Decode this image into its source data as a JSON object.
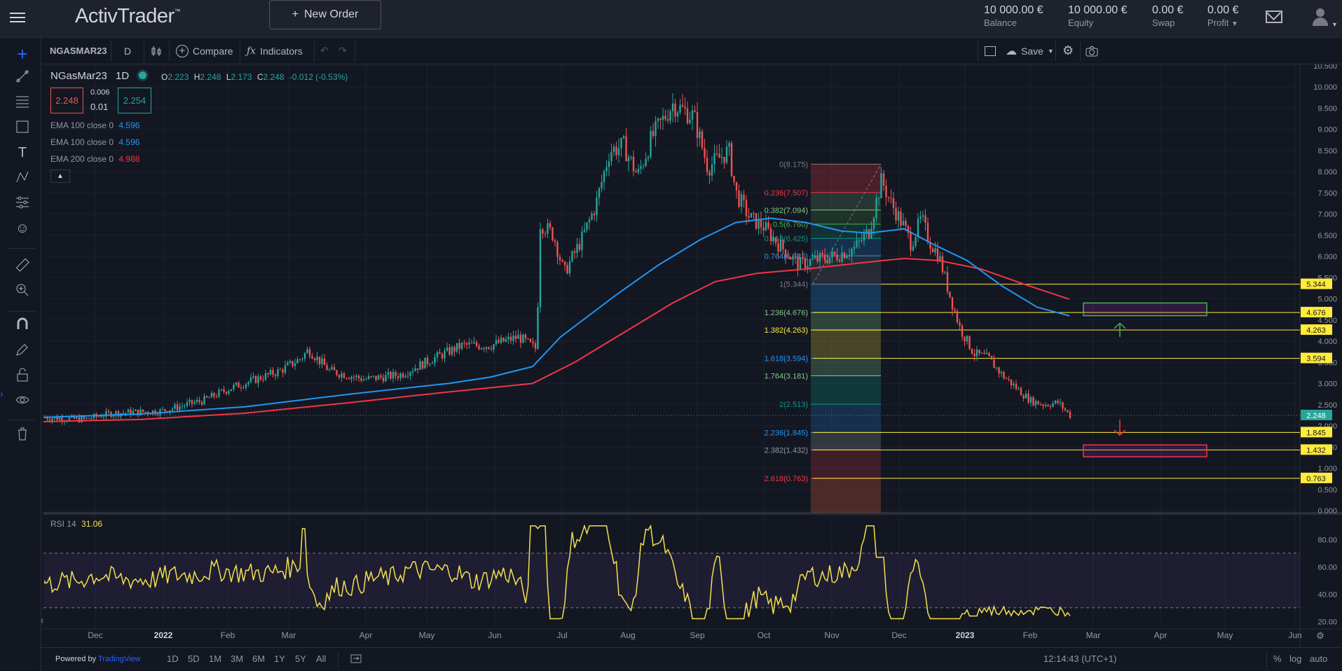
{
  "app": {
    "logo": "ActivTrader",
    "logo_tm": "™",
    "new_order_label": "New Order"
  },
  "account": [
    {
      "value": "10 000.00 €",
      "label": "Balance"
    },
    {
      "value": "10 000.00 €",
      "label": "Equity"
    },
    {
      "value": "0.00 €",
      "label": "Swap"
    },
    {
      "value": "0.00 €",
      "label": "Profit"
    }
  ],
  "toolbar": {
    "symbol": "NGASMAR23",
    "interval": "D",
    "compare": "Compare",
    "indicators": "Indicators",
    "save": "Save"
  },
  "legend": {
    "title": "NGasMar23",
    "tf": "1D",
    "o_label": "O",
    "o": "2.223",
    "h_label": "H",
    "h": "2.248",
    "l_label": "L",
    "l": "2.173",
    "c_label": "C",
    "c": "2.248",
    "chg": "-0.012 (-0.53%)",
    "bid": "2.248",
    "ask": "2.254",
    "spread_top": "0.006",
    "spread": "0.01",
    "emas": [
      {
        "label": "EMA 100 close 0",
        "value": "4.596",
        "color": "#2196f3"
      },
      {
        "label": "EMA 100 close 0",
        "value": "4.596",
        "color": "#2196f3"
      },
      {
        "label": "EMA 200 close 0",
        "value": "4.988",
        "color": "#f23645"
      }
    ]
  },
  "price_axis": [
    "10.500",
    "10.000",
    "9.500",
    "9.000",
    "8.500",
    "8.000",
    "7.500",
    "7.000",
    "6.500",
    "6.000",
    "5.500",
    "5.000",
    "4.500",
    "4.000",
    "3.500",
    "3.000",
    "2.500",
    "2.000",
    "1.500",
    "1.000",
    "0.500",
    "0.000"
  ],
  "price_tags": [
    {
      "value": "5.344",
      "price": 5.344,
      "bg": "#ffeb3b",
      "fg": "#131722"
    },
    {
      "value": "4.676",
      "price": 4.676,
      "bg": "#ffeb3b",
      "fg": "#131722"
    },
    {
      "value": "4.263",
      "price": 4.263,
      "bg": "#ffeb3b",
      "fg": "#131722"
    },
    {
      "value": "3.594",
      "price": 3.594,
      "bg": "#ffeb3b",
      "fg": "#131722"
    },
    {
      "value": "2.248",
      "price": 2.248,
      "bg": "#26a69a",
      "fg": "#ffffff"
    },
    {
      "value": "1.845",
      "price": 1.845,
      "bg": "#ffeb3b",
      "fg": "#131722"
    },
    {
      "value": "1.432",
      "price": 1.432,
      "bg": "#ffeb3b",
      "fg": "#131722"
    },
    {
      "value": "0.763",
      "price": 0.763,
      "bg": "#ffeb3b",
      "fg": "#131722"
    }
  ],
  "fib": [
    {
      "label": "0(8.175)",
      "price": 8.175,
      "color": "#787b86"
    },
    {
      "label": "0.236(7.507)",
      "price": 7.507,
      "color": "#f23645"
    },
    {
      "label": "0.382(7.094)",
      "price": 7.094,
      "color": "#81c784"
    },
    {
      "label": "0.5(6.760)",
      "price": 6.76,
      "color": "#4caf50"
    },
    {
      "label": "0.618(6.425)",
      "price": 6.425,
      "color": "#089981"
    },
    {
      "label": "0.764(6.012)",
      "price": 6.012,
      "color": "#2196f3"
    },
    {
      "label": "1(5.344)",
      "price": 5.344,
      "color": "#787b86"
    },
    {
      "label": "1.236(4.676)",
      "price": 4.676,
      "color": "#81c784"
    },
    {
      "label": "1.382(4.263)",
      "price": 4.263,
      "color": "#ffeb3b"
    },
    {
      "label": "1.618(3.594)",
      "price": 3.594,
      "color": "#2196f3"
    },
    {
      "label": "1.764(3.181)",
      "price": 3.181,
      "color": "#81c784"
    },
    {
      "label": "2(2.513)",
      "price": 2.513,
      "color": "#089981"
    },
    {
      "label": "2.236(1.845)",
      "price": 1.845,
      "color": "#2196f3"
    },
    {
      "label": "2.382(1.432)",
      "price": 1.432,
      "color": "#9598a1"
    },
    {
      "label": "2.618(0.763)",
      "price": 0.763,
      "color": "#f23645"
    }
  ],
  "rsi": {
    "label": "RSI 14",
    "value": "31.06",
    "axis": [
      "80.00",
      "60.00",
      "40.00",
      "20.00"
    ]
  },
  "time_axis": [
    "Dec",
    "2022",
    "Feb",
    "Mar",
    "Apr",
    "May",
    "Jun",
    "Jul",
    "Aug",
    "Sep",
    "Oct",
    "Nov",
    "Dec",
    "2023",
    "Feb",
    "Mar",
    "Apr",
    "May",
    "Jun"
  ],
  "bottom": {
    "powered": "Powered by ",
    "tv": "TradingView",
    "ranges": [
      "1D",
      "5D",
      "1M",
      "3M",
      "6M",
      "1Y",
      "5Y",
      "All"
    ],
    "time": "12:14:43 (UTC+1)",
    "pct": "%",
    "log": "log",
    "auto": "auto"
  },
  "colors": {
    "up": "#26a69a",
    "down": "#ef5350",
    "rsi": "#f4e04d",
    "accent": "#2962ff"
  },
  "chart_data": {
    "type": "candlestick",
    "title": "NGasMar23",
    "ylim": [
      0,
      10.5
    ],
    "dates": [
      "2021-11-01",
      "2021-12-01",
      "2022-01-01",
      "2022-02-01",
      "2022-03-01",
      "2022-04-01",
      "2022-05-01",
      "2022-06-01",
      "2022-06-20",
      "2022-07-01",
      "2022-08-01",
      "2022-08-23",
      "2022-09-01",
      "2022-10-01",
      "2022-11-01",
      "2022-11-21",
      "2022-12-01",
      "2023-01-01",
      "2023-02-01",
      "2023-02-22"
    ],
    "closes": [
      2.3,
      2.1,
      2.5,
      2.8,
      3.4,
      3.1,
      3.5,
      4.2,
      4.1,
      6.5,
      8.2,
      9.6,
      8.8,
      6.7,
      5.9,
      7.8,
      6.6,
      3.9,
      2.6,
      2.248
    ],
    "series": [
      {
        "name": "EMA 100 close 0",
        "last": 4.596
      },
      {
        "name": "EMA 200 close 0",
        "last": 4.988
      }
    ]
  }
}
